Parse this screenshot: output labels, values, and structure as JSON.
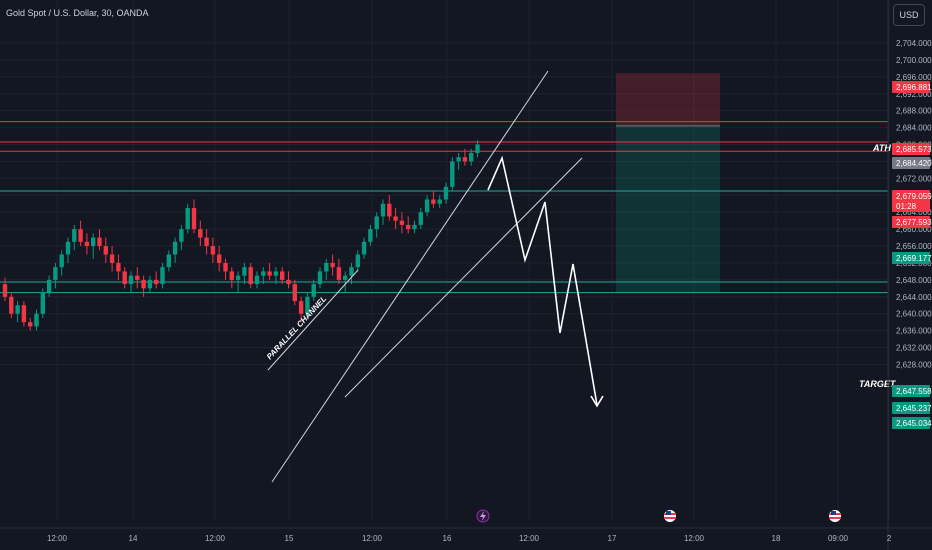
{
  "header": {
    "symbol_title": "Gold Spot / U.S. Dollar, 30, OANDA",
    "currency_button": "USD"
  },
  "chart_data": {
    "type": "candlestick",
    "title": "Gold Spot / U.S. Dollar, 30, OANDA",
    "y_axis": {
      "ylim": [
        2626,
        2706
      ],
      "ticks": [
        "2,704.000",
        "2,700.000",
        "2,696.000",
        "2,692.000",
        "2,688.000",
        "2,684.000",
        "2,680.000",
        "2,676.000",
        "2,672.000",
        "2,668.000",
        "2,664.000",
        "2,660.000",
        "2,656.000",
        "2,652.000",
        "2,648.000",
        "2,644.000",
        "2,640.000",
        "2,636.000",
        "2,632.000",
        "2,628.000"
      ],
      "tick_values": [
        2704,
        2700,
        2696,
        2692,
        2688,
        2684,
        2680,
        2676,
        2672,
        2668,
        2664,
        2660,
        2656,
        2652,
        2648,
        2644,
        2640,
        2636,
        2632,
        2628
      ]
    },
    "x_axis": {
      "tick_labels": [
        "12:00",
        "14",
        "12:00",
        "15",
        "12:00",
        "16",
        "12:00",
        "17",
        "12:00",
        "18",
        "09:00",
        "2"
      ]
    },
    "price_badges": [
      {
        "label": "2,696.881",
        "value": 2696.881,
        "color": "#f23645"
      },
      {
        "label": "2,685.573",
        "value": 2685.573,
        "color": "#f23645"
      },
      {
        "label": "2,684.420",
        "value": 2684.42,
        "color": "#787b86"
      },
      {
        "label": "2,679.055",
        "value": 2679.055,
        "color": "#f23645",
        "sub": "01:28"
      },
      {
        "label": "2,677.593",
        "value": 2677.593,
        "color": "#f23645"
      },
      {
        "label": "2,669.177",
        "value": 2669.177,
        "color": "#089981"
      },
      {
        "label": "2,647.558",
        "value": 2647.558,
        "color": "#089981"
      },
      {
        "label": "2,645.237",
        "value": 2645.237,
        "color": "#089981"
      },
      {
        "label": "2,645.034",
        "value": 2645.034,
        "color": "#089981"
      }
    ],
    "horizontal_levels": [
      {
        "value": 2685.4,
        "color": "#f23645"
      },
      {
        "value": 2680.6,
        "color": "#f23645"
      },
      {
        "value": 2678.4,
        "color": "#f23645"
      },
      {
        "value": 2669.0,
        "color": "#22ab94"
      },
      {
        "value": 2647.5,
        "color": "#22ab94"
      },
      {
        "value": 2645.0,
        "color": "#22ab94"
      }
    ],
    "annotations": [
      {
        "text": "ATH"
      },
      {
        "text": "TARGET"
      },
      {
        "text": "PARALLEL CHANNEL"
      }
    ],
    "position_tool": {
      "entry": 2684.42,
      "stop": 2696.881,
      "target": 2645.034
    },
    "candles_ohlc": [
      [
        2647,
        2648.5,
        2643,
        2644
      ],
      [
        2644,
        2645,
        2639,
        2640
      ],
      [
        2640,
        2643,
        2638,
        2642
      ],
      [
        2642,
        2643,
        2637,
        2638
      ],
      [
        2638,
        2639,
        2636,
        2637
      ],
      [
        2637,
        2641,
        2636,
        2640
      ],
      [
        2640,
        2646,
        2639,
        2645
      ],
      [
        2645,
        2649,
        2644,
        2648
      ],
      [
        2648,
        2652,
        2646,
        2651
      ],
      [
        2651,
        2655,
        2649,
        2654
      ],
      [
        2654,
        2658,
        2652,
        2657
      ],
      [
        2657,
        2661,
        2655,
        2660
      ],
      [
        2660,
        2662,
        2656,
        2657
      ],
      [
        2657,
        2659,
        2654,
        2656
      ],
      [
        2656,
        2659,
        2653,
        2658
      ],
      [
        2658,
        2660,
        2655,
        2656
      ],
      [
        2656,
        2658,
        2652,
        2654
      ],
      [
        2654,
        2656,
        2650,
        2652
      ],
      [
        2652,
        2654,
        2648,
        2650
      ],
      [
        2650,
        2651,
        2646,
        2647
      ],
      [
        2647,
        2650,
        2645,
        2649
      ],
      [
        2649,
        2651,
        2646,
        2648
      ],
      [
        2648,
        2649,
        2644,
        2646
      ],
      [
        2646,
        2649,
        2645,
        2648
      ],
      [
        2648,
        2650,
        2646,
        2647
      ],
      [
        2647,
        2652,
        2646,
        2651
      ],
      [
        2651,
        2655,
        2650,
        2654
      ],
      [
        2654,
        2658,
        2652,
        2657
      ],
      [
        2657,
        2661,
        2655,
        2660
      ],
      [
        2660,
        2666,
        2659,
        2665
      ],
      [
        2665,
        2667,
        2659,
        2660
      ],
      [
        2660,
        2662,
        2656,
        2658
      ],
      [
        2658,
        2660,
        2654,
        2656
      ],
      [
        2656,
        2658,
        2652,
        2654
      ],
      [
        2654,
        2656,
        2650,
        2652
      ],
      [
        2652,
        2653,
        2648,
        2650
      ],
      [
        2650,
        2651,
        2646,
        2648
      ],
      [
        2648,
        2650,
        2645,
        2649
      ],
      [
        2649,
        2652,
        2647,
        2651
      ],
      [
        2651,
        2652,
        2646,
        2647
      ],
      [
        2647,
        2650,
        2646,
        2649
      ],
      [
        2649,
        2651,
        2647,
        2650
      ],
      [
        2650,
        2652,
        2648,
        2649
      ],
      [
        2649,
        2651,
        2647,
        2650
      ],
      [
        2650,
        2651,
        2647,
        2648
      ],
      [
        2648,
        2650,
        2646,
        2647
      ],
      [
        2647,
        2648,
        2642,
        2643
      ],
      [
        2643,
        2644,
        2638,
        2640
      ],
      [
        2640,
        2645,
        2639,
        2644
      ],
      [
        2644,
        2648,
        2643,
        2647
      ],
      [
        2647,
        2651,
        2646,
        2650
      ],
      [
        2650,
        2653,
        2648,
        2652
      ],
      [
        2652,
        2654,
        2649,
        2651
      ],
      [
        2651,
        2653,
        2647,
        2648
      ],
      [
        2648,
        2650,
        2645,
        2649
      ],
      [
        2649,
        2652,
        2647,
        2651
      ],
      [
        2651,
        2655,
        2650,
        2654
      ],
      [
        2654,
        2658,
        2653,
        2657
      ],
      [
        2657,
        2661,
        2656,
        2660
      ],
      [
        2660,
        2664,
        2658,
        2663
      ],
      [
        2663,
        2667,
        2661,
        2666
      ],
      [
        2666,
        2668,
        2662,
        2663
      ],
      [
        2663,
        2665,
        2660,
        2662
      ],
      [
        2662,
        2664,
        2659,
        2661
      ],
      [
        2661,
        2663,
        2659,
        2660
      ],
      [
        2660,
        2662,
        2659,
        2661
      ],
      [
        2661,
        2665,
        2660,
        2664
      ],
      [
        2664,
        2668,
        2663,
        2667
      ],
      [
        2667,
        2669,
        2665,
        2666
      ],
      [
        2666,
        2668,
        2665,
        2667
      ],
      [
        2667,
        2671,
        2666,
        2670
      ],
      [
        2670,
        2677,
        2669,
        2676
      ],
      [
        2676,
        2678,
        2674,
        2677
      ],
      [
        2677,
        2679,
        2675,
        2676
      ],
      [
        2676,
        2679,
        2675,
        2678
      ],
      [
        2678,
        2681,
        2677,
        2680
      ]
    ]
  }
}
